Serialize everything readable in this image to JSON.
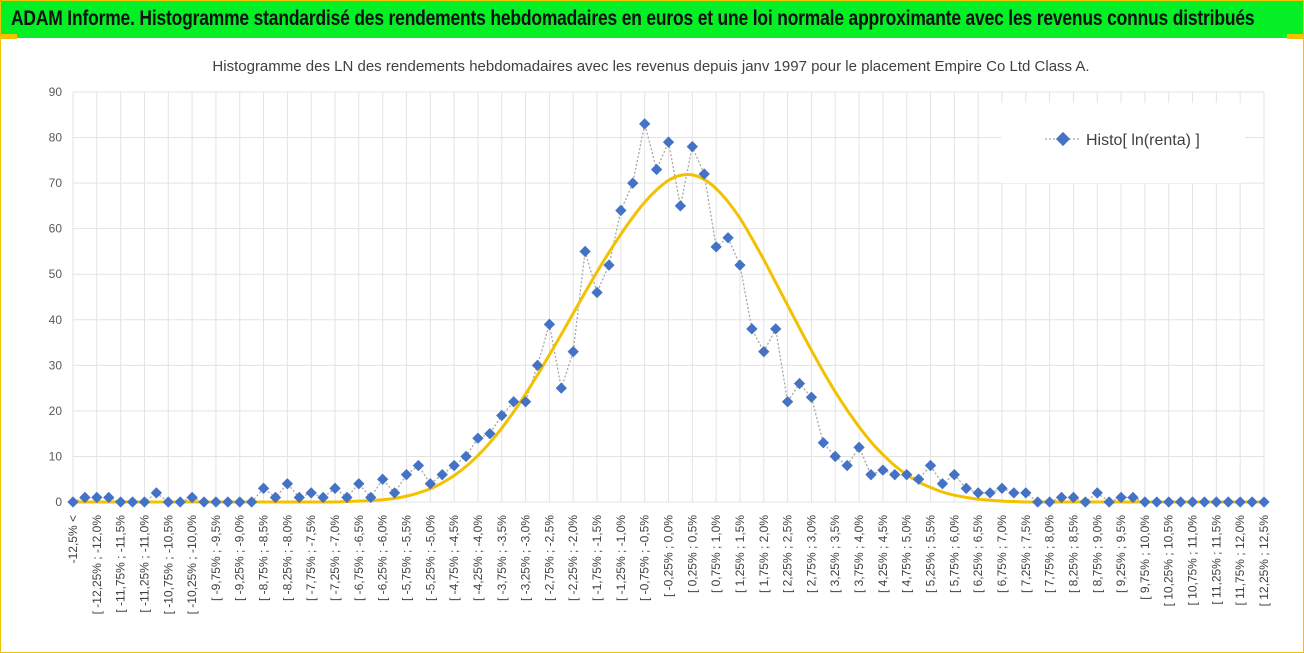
{
  "banner": {
    "title": "ADAM Informe. Histogramme standardisé des rendements hebdomadaires en euros et une loi normale approximante avec les revenus connus distribués"
  },
  "colors": {
    "banner": "#04ef24",
    "histogram": "#4472c4",
    "normal_curve": "#f2c200",
    "frame": "#f2c200"
  },
  "chart_data": {
    "type": "line",
    "title": "Histogramme des LN des rendements hebdomadaires avec les revenus depuis janv 1997 pour le placement Empire Co Ltd Class A.",
    "xlabel": "",
    "ylabel": "",
    "ylim": [
      0,
      90
    ],
    "yticks": [
      "0",
      "10",
      "20",
      "30",
      "40",
      "50",
      "60",
      "70",
      "80",
      "90"
    ],
    "grid": true,
    "legend_position": "top-right",
    "categories": [
      "-12,5% <",
      "[ -12,25% ; -12,0%",
      "[ -11,75% ; -11,5%",
      "[ -11,25% ; -11,0%",
      "[ -10,75% ; -10,5%",
      "[ -10,25% ; -10,0%",
      "[ -9,75% ; -9,5%",
      "[ -9,25% ; -9,0%",
      "[ -8,75% ; -8,5%",
      "[ -8,25% ; -8,0%",
      "[ -7,75% ; -7,5%",
      "[ -7,25% ; -7,0%",
      "[ -6,75% ; -6,5%",
      "[ -6,25% ; -6,0%",
      "[ -5,75% ; -5,5%",
      "[ -5,25% ; -5,0%",
      "[ -4,75% ; -4,5%",
      "[ -4,25% ; -4,0%",
      "[ -3,75% ; -3,5%",
      "[ -3,25% ; -3,0%",
      "[ -2,75% ; -2,5%",
      "[ -2,25% ; -2,0%",
      "[ -1,75% ; -1,5%",
      "[ -1,25% ; -1,0%",
      "[ -0,75% ; -0,5%",
      "[ -0,25% ; 0,0%",
      "[ 0,25% ; 0,5%",
      "[ 0,75% ; 1,0%",
      "[ 1,25% ; 1,5%",
      "[ 1,75% ; 2,0%",
      "[ 2,25% ; 2,5%",
      "[ 2,75% ; 3,0%",
      "[ 3,25% ; 3,5%",
      "[ 3,75% ; 4,0%",
      "[ 4,25% ; 4,5%",
      "[ 4,75% ; 5,0%",
      "[ 5,25% ; 5,5%",
      "[ 5,75% ; 6,0%",
      "[ 6,25% ; 6,5%",
      "[ 6,75% ; 7,0%",
      "[ 7,25% ; 7,5%",
      "[ 7,75% ; 8,0%",
      "[ 8,25% ; 8,5%",
      "[ 8,75% ; 9,0%",
      "[ 9,25% ; 9,5%",
      "[ 9,75% ; 10,0%",
      "[ 10,25% ; 10,5%",
      "[ 10,75% ; 11,0%",
      "[ 11,25% ; 11,5%",
      "[ 11,75% ; 12,0%",
      "[ 12,25% ; 12,5%"
    ],
    "x": [
      -12.5,
      -12.25,
      -12.0,
      -11.75,
      -11.5,
      -11.25,
      -11.0,
      -10.75,
      -10.5,
      -10.25,
      -10.0,
      -9.75,
      -9.5,
      -9.25,
      -9.0,
      -8.75,
      -8.5,
      -8.25,
      -8.0,
      -7.75,
      -7.5,
      -7.25,
      -7.0,
      -6.75,
      -6.5,
      -6.25,
      -6.0,
      -5.75,
      -5.5,
      -5.25,
      -5.0,
      -4.75,
      -4.5,
      -4.25,
      -4.0,
      -3.75,
      -3.5,
      -3.25,
      -3.0,
      -2.75,
      -2.5,
      -2.25,
      -2.0,
      -1.75,
      -1.5,
      -1.25,
      -1.0,
      -0.75,
      -0.5,
      -0.25,
      0.0,
      0.25,
      0.5,
      0.75,
      1.0,
      1.25,
      1.5,
      1.75,
      2.0,
      2.25,
      2.5,
      2.75,
      3.0,
      3.25,
      3.5,
      3.75,
      4.0,
      4.25,
      4.5,
      4.75,
      5.0,
      5.25,
      5.5,
      5.75,
      6.0,
      6.25,
      6.5,
      6.75,
      7.0,
      7.25,
      7.5,
      7.75,
      8.0,
      8.25,
      8.5,
      8.75,
      9.0,
      9.25,
      9.5,
      9.75,
      10.0,
      10.25,
      10.5,
      10.75,
      11.0,
      11.25,
      11.5,
      11.75,
      12.0,
      12.25,
      12.5
    ],
    "series": [
      {
        "name": "Histo[ ln(renta) ]",
        "type": "line-markers",
        "values": [
          0,
          1,
          1,
          1,
          0,
          0,
          0,
          2,
          0,
          0,
          1,
          0,
          0,
          0,
          0,
          0,
          3,
          1,
          4,
          1,
          2,
          1,
          3,
          1,
          4,
          1,
          5,
          2,
          6,
          8,
          4,
          6,
          8,
          10,
          14,
          15,
          19,
          22,
          22,
          30,
          39,
          25,
          33,
          55,
          46,
          52,
          64,
          70,
          83,
          73,
          79,
          65,
          78,
          72,
          56,
          58,
          52,
          38,
          33,
          38,
          22,
          26,
          23,
          13,
          10,
          8,
          12,
          6,
          7,
          6,
          6,
          5,
          8,
          4,
          6,
          3,
          2,
          2,
          3,
          2,
          2,
          0,
          0,
          1,
          1,
          0,
          2,
          0,
          1,
          1,
          0,
          0,
          0,
          0,
          0,
          0,
          0,
          0,
          0,
          0,
          0
        ]
      },
      {
        "type": "normal-curve",
        "values": [
          0,
          0,
          0,
          0,
          0,
          0,
          0,
          0,
          0,
          0,
          0,
          0,
          0,
          0,
          0,
          0,
          0,
          0,
          0,
          0,
          0,
          0,
          0,
          0.1,
          0.2,
          0.3,
          0.5,
          0.8,
          1.3,
          2.0,
          2.9,
          4.2,
          5.8,
          7.8,
          10.2,
          13.0,
          16.2,
          19.8,
          23.7,
          27.9,
          32.3,
          36.8,
          41.4,
          46.0,
          50.5,
          54.8,
          58.8,
          62.5,
          65.8,
          68.5,
          70.6,
          71.7,
          71.8,
          70.8,
          68.8,
          65.9,
          62.3,
          57.9,
          53.2,
          48.2,
          43.2,
          38.2,
          33.3,
          28.6,
          24.2,
          20.2,
          16.5,
          13.2,
          10.4,
          8.0,
          6.0,
          4.4,
          3.2,
          2.2,
          1.5,
          1.0,
          0.6,
          0.4,
          0.2,
          0.1,
          0,
          0,
          0,
          0,
          0,
          0,
          0,
          0,
          0,
          0,
          0,
          0,
          0,
          0,
          0,
          0,
          0,
          0,
          0,
          0,
          0
        ]
      }
    ]
  }
}
